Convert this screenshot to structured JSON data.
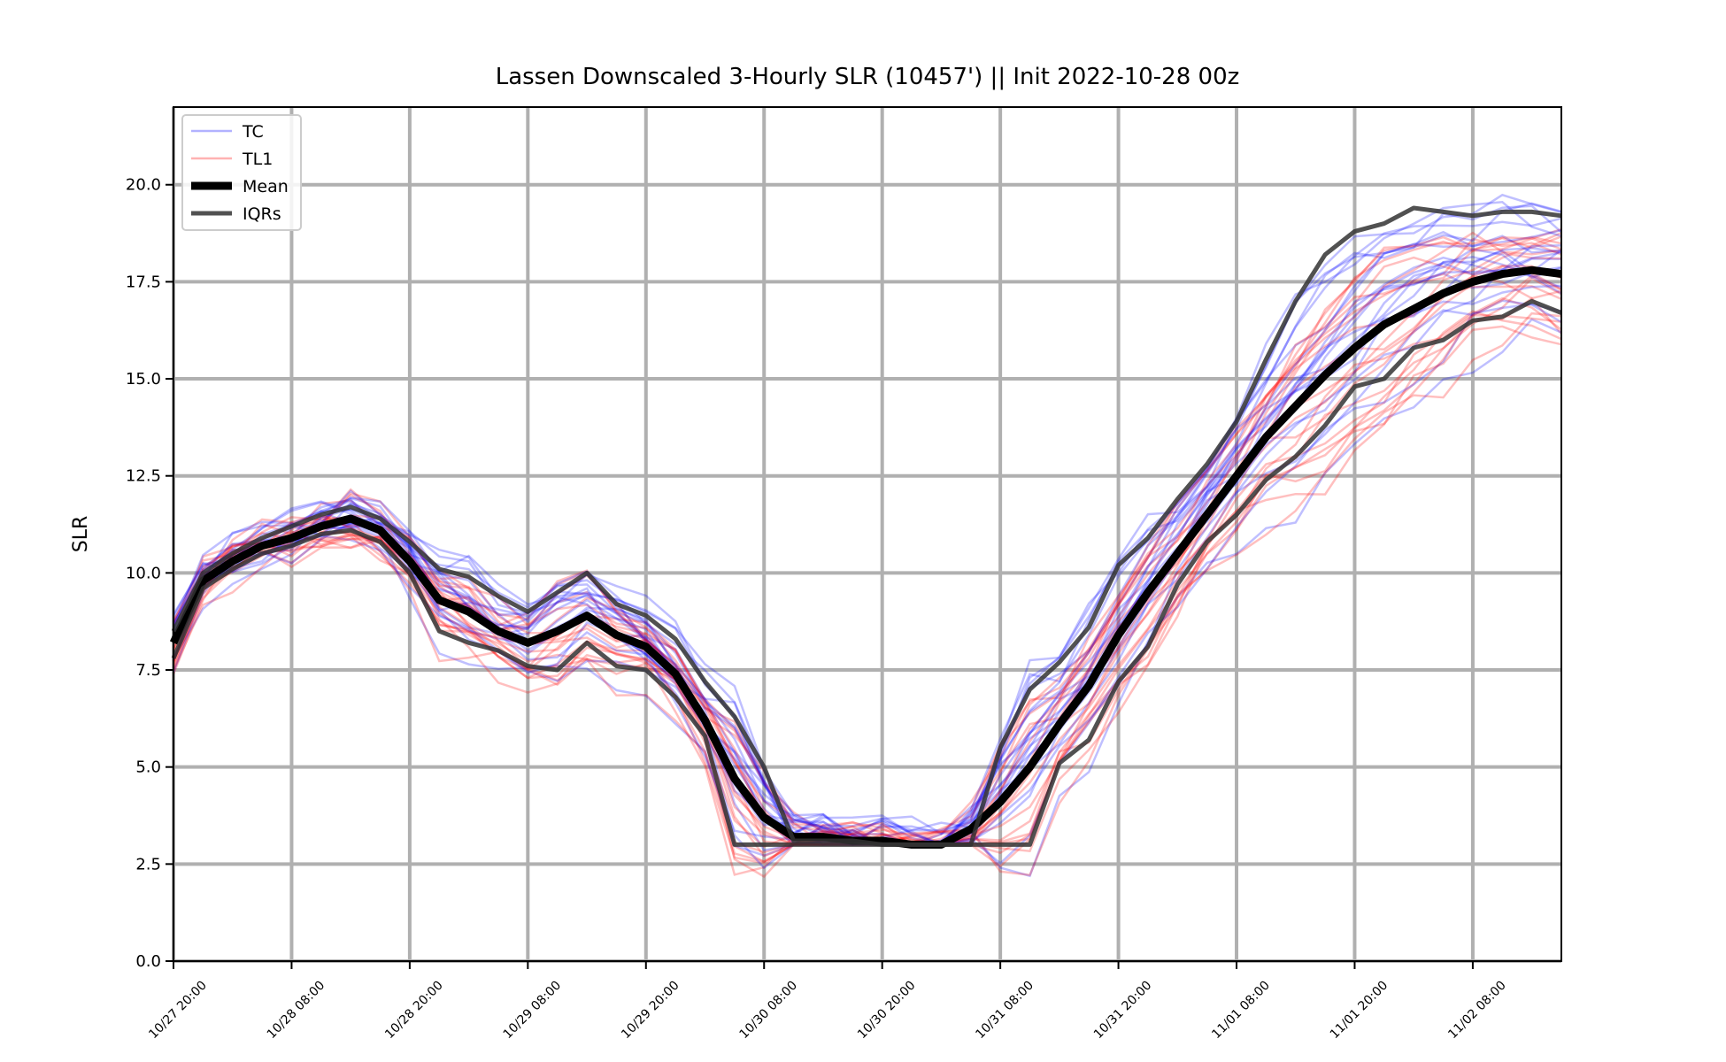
{
  "chart_data": {
    "type": "line",
    "title": "Lassen Downscaled 3-Hourly SLR (10457') || Init 2022-10-28 00z",
    "xlabel": "",
    "ylabel": "SLR",
    "xlim": [
      0,
      141
    ],
    "ylim": [
      0,
      22
    ],
    "grid": true,
    "legend_position": "upper-left",
    "x_ticks": [
      {
        "x": 0,
        "label": "10/27 20:00"
      },
      {
        "x": 12,
        "label": "10/28 08:00"
      },
      {
        "x": 24,
        "label": "10/28 20:00"
      },
      {
        "x": 36,
        "label": "10/29 08:00"
      },
      {
        "x": 48,
        "label": "10/29 20:00"
      },
      {
        "x": 60,
        "label": "10/30 08:00"
      },
      {
        "x": 72,
        "label": "10/30 20:00"
      },
      {
        "x": 84,
        "label": "10/31 08:00"
      },
      {
        "x": 96,
        "label": "10/31 20:00"
      },
      {
        "x": 108,
        "label": "11/01 08:00"
      },
      {
        "x": 120,
        "label": "11/01 20:00"
      },
      {
        "x": 132,
        "label": "11/02 08:00"
      }
    ],
    "y_ticks": [
      {
        "y": 0,
        "label": "0.0"
      },
      {
        "y": 2.5,
        "label": "2.5"
      },
      {
        "y": 5,
        "label": "5.0"
      },
      {
        "y": 7.5,
        "label": "7.5"
      },
      {
        "y": 10,
        "label": "10.0"
      },
      {
        "y": 12.5,
        "label": "12.5"
      },
      {
        "y": 15,
        "label": "15.0"
      },
      {
        "y": 17.5,
        "label": "17.5"
      },
      {
        "y": 20,
        "label": "20.0"
      }
    ],
    "legend": [
      {
        "label": "TC",
        "color": "#0000ff",
        "style": "thin-translucent"
      },
      {
        "label": "TL1",
        "color": "#ff0000",
        "style": "thin-translucent"
      },
      {
        "label": "Mean",
        "color": "#000000",
        "style": "thick"
      },
      {
        "label": "IQRs",
        "color": "#333333",
        "style": "medium"
      }
    ],
    "x": [
      0,
      3,
      6,
      9,
      12,
      15,
      18,
      21,
      24,
      27,
      30,
      33,
      36,
      39,
      42,
      45,
      48,
      51,
      54,
      57,
      60,
      63,
      66,
      69,
      72,
      75,
      78,
      81,
      84,
      87,
      90,
      93,
      96,
      99,
      102,
      105,
      108,
      111,
      114,
      117,
      120,
      123,
      126,
      129,
      132,
      135,
      138,
      141
    ],
    "series": [
      {
        "name": "Mean",
        "color": "#000000",
        "values": [
          8.2,
          9.8,
          10.3,
          10.7,
          10.9,
          11.2,
          11.4,
          11.1,
          10.3,
          9.3,
          9.0,
          8.5,
          8.2,
          8.5,
          8.9,
          8.4,
          8.1,
          7.4,
          6.2,
          4.7,
          3.7,
          3.2,
          3.2,
          3.1,
          3.1,
          3.0,
          3.0,
          3.4,
          4.1,
          5.0,
          6.1,
          7.1,
          8.4,
          9.5,
          10.5,
          11.5,
          12.5,
          13.5,
          14.3,
          15.1,
          15.8,
          16.4,
          16.8,
          17.2,
          17.5,
          17.7,
          17.8,
          17.7
        ]
      },
      {
        "name": "IQR Upper",
        "color": "#333333",
        "values": [
          8.5,
          10.0,
          10.5,
          10.9,
          11.2,
          11.5,
          11.7,
          11.4,
          10.8,
          10.1,
          9.9,
          9.4,
          9.0,
          9.5,
          10.0,
          9.2,
          8.9,
          8.3,
          7.2,
          6.3,
          5.0,
          3.1,
          3.1,
          3.1,
          3.0,
          3.0,
          3.0,
          3.0,
          5.5,
          7.0,
          7.7,
          8.6,
          10.2,
          10.9,
          11.9,
          12.8,
          13.9,
          15.5,
          17.0,
          18.2,
          18.8,
          19.0,
          19.4,
          19.3,
          19.2,
          19.3,
          19.3,
          19.2
        ]
      },
      {
        "name": "IQR Lower",
        "color": "#333333",
        "values": [
          7.8,
          9.6,
          10.1,
          10.5,
          10.7,
          11.0,
          11.1,
          10.8,
          10.0,
          8.5,
          8.2,
          8.0,
          7.6,
          7.5,
          8.2,
          7.6,
          7.5,
          6.8,
          5.8,
          3.0,
          3.0,
          3.0,
          3.0,
          3.0,
          3.0,
          3.0,
          3.0,
          3.0,
          3.0,
          3.0,
          5.1,
          5.7,
          7.2,
          8.1,
          9.7,
          10.8,
          11.5,
          12.4,
          13.0,
          13.8,
          14.8,
          15.0,
          15.8,
          16.0,
          16.5,
          16.6,
          17.0,
          16.7
        ]
      }
    ]
  }
}
